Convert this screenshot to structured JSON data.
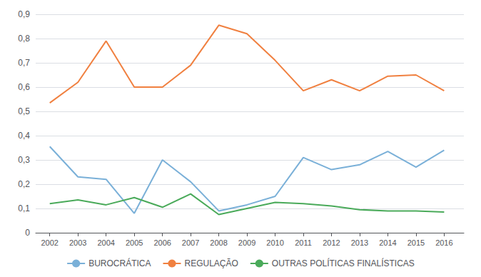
{
  "chart_data": {
    "type": "line",
    "x": [
      2002,
      2003,
      2004,
      2005,
      2006,
      2007,
      2008,
      2009,
      2010,
      2011,
      2012,
      2013,
      2014,
      2015,
      2016
    ],
    "series": [
      {
        "name": "BUROCRÁTICA",
        "color": "#7ab0d8",
        "values": [
          0.355,
          0.23,
          0.22,
          0.08,
          0.3,
          0.21,
          0.09,
          0.115,
          0.15,
          0.31,
          0.26,
          0.28,
          0.335,
          0.27,
          0.34
        ]
      },
      {
        "name": "REGULAÇÃO",
        "color": "#f08040",
        "values": [
          0.535,
          0.62,
          0.79,
          0.6,
          0.6,
          0.69,
          0.855,
          0.82,
          0.71,
          0.585,
          0.63,
          0.585,
          0.645,
          0.65,
          0.585
        ]
      },
      {
        "name": "OUTRAS POLÍTICAS FINALÍSTICAS",
        "color": "#4aaa5a",
        "values": [
          0.12,
          0.135,
          0.115,
          0.145,
          0.105,
          0.16,
          0.075,
          0.1,
          0.125,
          0.12,
          0.11,
          0.095,
          0.09,
          0.09,
          0.085
        ]
      }
    ],
    "xlim": [
      2001.5,
      2016.7
    ],
    "xticks": [
      2002,
      2003,
      2004,
      2005,
      2006,
      2007,
      2008,
      2009,
      2010,
      2011,
      2012,
      2013,
      2014,
      2015,
      2016
    ],
    "ylim": [
      0,
      0.9
    ],
    "yticks": [
      0,
      {
        "value": 0.1,
        "label": "0,1"
      },
      {
        "value": 0.2,
        "label": "0,2"
      },
      {
        "value": 0.3,
        "label": "0,3"
      },
      {
        "value": 0.4,
        "label": "0,4"
      },
      {
        "value": 0.5,
        "label": "0,5"
      },
      {
        "value": 0.6,
        "label": "0,6"
      },
      {
        "value": 0.7,
        "label": "0,7"
      },
      {
        "value": 0.8,
        "label": "0,8"
      },
      {
        "value": 0.9,
        "label": "0,9"
      }
    ],
    "grid": true,
    "legend": "bottom"
  }
}
